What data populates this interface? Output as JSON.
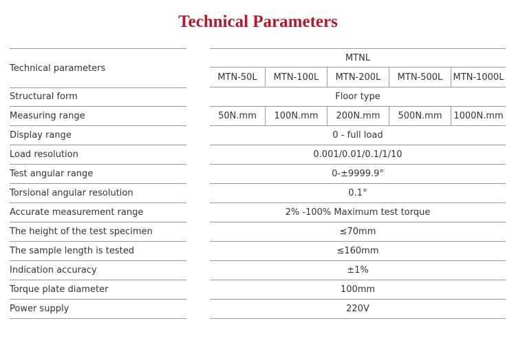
{
  "title": "Technical Parameters",
  "header": {
    "label": "Technical parameters",
    "series": "MTNL",
    "models": [
      "MTN-50L",
      "MTN-100L",
      "MTN-200L",
      "MTN-500L",
      "MTN-1000L"
    ]
  },
  "rows": [
    {
      "label": "Structural form",
      "value": "Floor type"
    },
    {
      "label": "Measuring range",
      "values": [
        "50N.mm",
        "100N.mm",
        "200N.mm",
        "500N.mm",
        "1000N.mm"
      ]
    },
    {
      "label": "Display range",
      "value": "0 - full load"
    },
    {
      "label": "Load resolution",
      "value": "0.001/0.01/0.1/1/10"
    },
    {
      "label": "Test angular range",
      "value": "0-±9999.9°"
    },
    {
      "label": "Torsional angular resolution",
      "value": "0.1°"
    },
    {
      "label": "Accurate measurement range",
      "value": "2% -100% Maximum test torque"
    },
    {
      "label": "The height of the test specimen",
      "value": "≤70mm"
    },
    {
      "label": "The sample length is tested",
      "value": "≤160mm"
    },
    {
      "label": "Indication accuracy",
      "value": "±1%"
    },
    {
      "label": "Torque plate diameter",
      "value": "100mm"
    },
    {
      "label": "Power supply",
      "value": "220V"
    }
  ]
}
